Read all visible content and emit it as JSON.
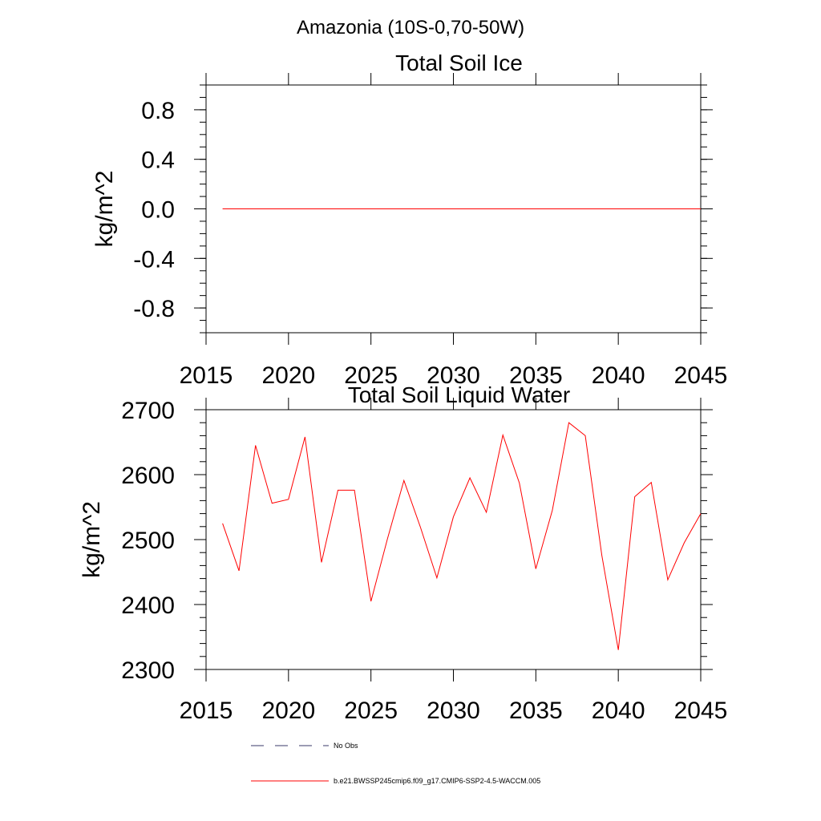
{
  "figure_title": "Amazonia (10S-0,70-50W)",
  "chart_data": [
    {
      "type": "line",
      "title": "Total Soil Ice",
      "xlabel": "",
      "ylabel": "kg/m^2",
      "xlim": [
        2015,
        2045
      ],
      "ylim": [
        -1.0,
        1.0
      ],
      "x_ticks": [
        2015,
        2020,
        2025,
        2030,
        2035,
        2040,
        2045
      ],
      "y_ticks": [
        -0.8,
        -0.4,
        0.0,
        0.4,
        0.8
      ],
      "y_tick_labels": [
        "-0.8",
        "-0.4",
        "0.0",
        "0.4",
        "0.8"
      ],
      "series": [
        {
          "name": "b.e21.BWSSP245cmip6.f09_g17.CMIP6-SSP2-4.5-WACCM.005",
          "color": "#ff0000",
          "x": [
            2016,
            2017,
            2018,
            2019,
            2020,
            2021,
            2022,
            2023,
            2024,
            2025,
            2026,
            2027,
            2028,
            2029,
            2030,
            2031,
            2032,
            2033,
            2034,
            2035,
            2036,
            2037,
            2038,
            2039,
            2040,
            2041,
            2042,
            2043,
            2044,
            2045
          ],
          "values": [
            0,
            0,
            0,
            0,
            0,
            0,
            0,
            0,
            0,
            0,
            0,
            0,
            0,
            0,
            0,
            0,
            0,
            0,
            0,
            0,
            0,
            0,
            0,
            0,
            0,
            0,
            0,
            0,
            0,
            0
          ]
        }
      ]
    },
    {
      "type": "line",
      "title": "Total Soil Liquid Water",
      "xlabel": "",
      "ylabel": "kg/m^2",
      "xlim": [
        2015,
        2045
      ],
      "ylim": [
        2300,
        2700
      ],
      "x_ticks": [
        2015,
        2020,
        2025,
        2030,
        2035,
        2040,
        2045
      ],
      "y_ticks": [
        2300,
        2400,
        2500,
        2600,
        2700
      ],
      "y_tick_labels": [
        "2300",
        "2400",
        "2500",
        "2600",
        "2700"
      ],
      "series": [
        {
          "name": "b.e21.BWSSP245cmip6.f09_g17.CMIP6-SSP2-4.5-WACCM.005",
          "color": "#ff0000",
          "x": [
            2016,
            2017,
            2018,
            2019,
            2020,
            2021,
            2022,
            2023,
            2024,
            2025,
            2026,
            2027,
            2028,
            2029,
            2030,
            2031,
            2032,
            2033,
            2034,
            2035,
            2036,
            2037,
            2038,
            2039,
            2040,
            2041,
            2042,
            2043,
            2044,
            2045
          ],
          "values": [
            2525,
            2452,
            2645,
            2556,
            2562,
            2658,
            2465,
            2576,
            2576,
            2405,
            2501,
            2591,
            2519,
            2441,
            2535,
            2595,
            2542,
            2661,
            2587,
            2455,
            2545,
            2680,
            2660,
            2476,
            2330,
            2566,
            2588,
            2438,
            2495,
            2540
          ]
        }
      ]
    }
  ],
  "legend": [
    {
      "label": "No Obs",
      "style": "dashed",
      "color": "#3a3a6a"
    },
    {
      "label": "b.e21.BWSSP245cmip6.f09_g17.CMIP6-SSP2-4.5-WACCM.005",
      "style": "solid",
      "color": "#ff0000"
    }
  ]
}
